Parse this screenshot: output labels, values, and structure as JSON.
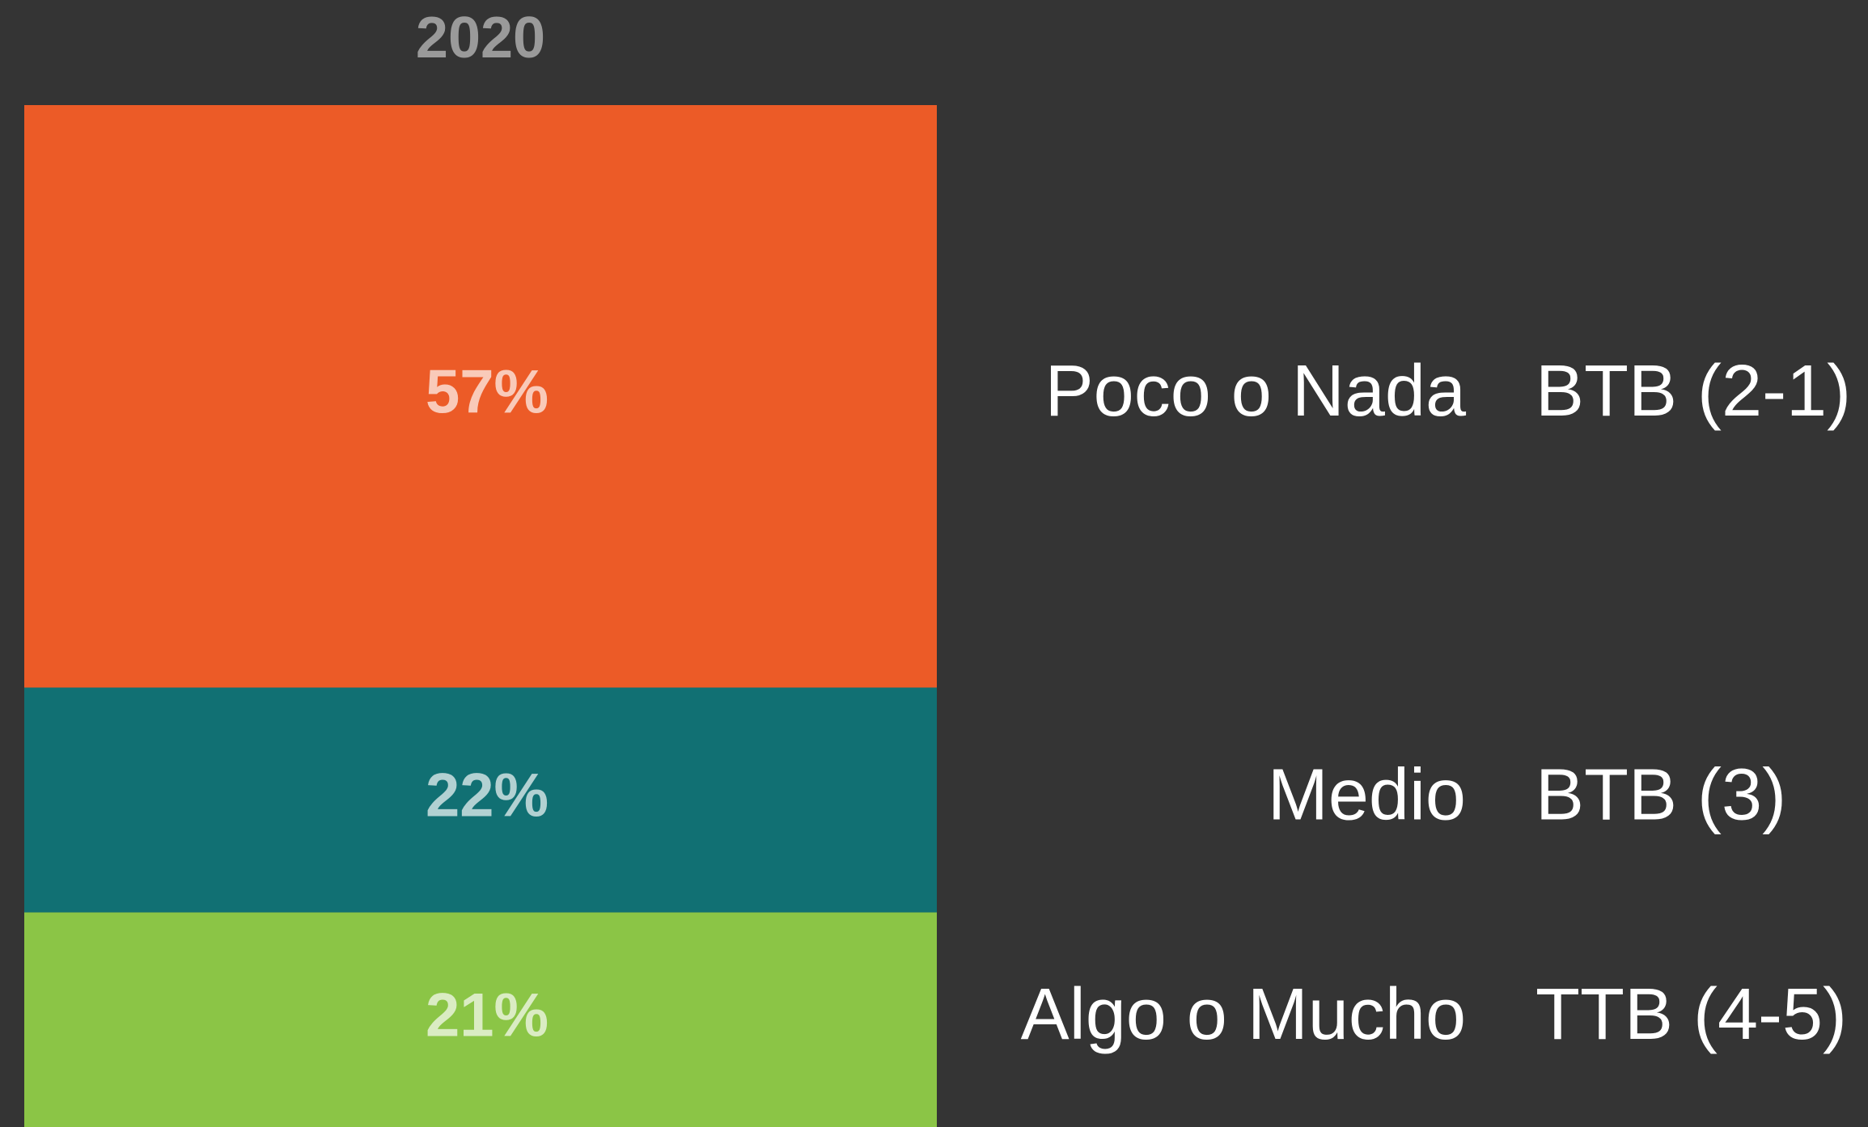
{
  "chart_data": {
    "type": "bar",
    "stacked": true,
    "categories": [
      "2020"
    ],
    "ylim": [
      0,
      100
    ],
    "series": [
      {
        "name": "Poco o Nada",
        "group": "BTB (2-1)",
        "color": "#ec5b27",
        "values": [
          57
        ],
        "value_labels": [
          "57%"
        ]
      },
      {
        "name": "Medio",
        "group": "BTB (3)",
        "color": "#117073",
        "values": [
          22
        ],
        "value_labels": [
          "22%"
        ]
      },
      {
        "name": "Algo o Mucho",
        "group": "TTB (4-5)",
        "color": "#8bc546",
        "values": [
          21
        ],
        "value_labels": [
          "21%"
        ]
      }
    ]
  }
}
